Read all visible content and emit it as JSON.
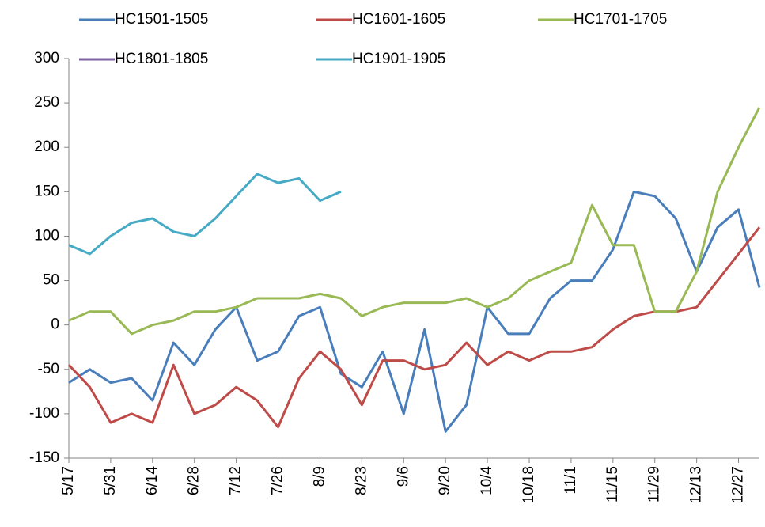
{
  "chart_data": {
    "type": "line",
    "categories": [
      "5/17",
      null,
      "5/31",
      null,
      "6/14",
      null,
      "6/28",
      null,
      "7/12",
      null,
      "7/26",
      null,
      "8/9",
      null,
      "8/23",
      null,
      "9/6",
      null,
      "9/20",
      null,
      "10/4",
      null,
      "10/18",
      null,
      "11/1",
      null,
      "11/15",
      null,
      "11/29",
      null,
      "12/13",
      null,
      "12/27",
      null
    ],
    "series": [
      {
        "name": "HC1501-1505",
        "color": "#4a7ebb",
        "values": [
          -65,
          -50,
          -65,
          -60,
          -85,
          -20,
          -45,
          -5,
          20,
          -40,
          -30,
          10,
          20,
          -55,
          -70,
          -30,
          -100,
          -5,
          -120,
          -90,
          20,
          -10,
          -10,
          30,
          50,
          50,
          85,
          150,
          145,
          120,
          60,
          110,
          130,
          42
        ]
      },
      {
        "name": "HC1601-1605",
        "color": "#be4b48",
        "values": [
          -45,
          -70,
          -110,
          -100,
          -110,
          -45,
          -100,
          -90,
          -70,
          -85,
          -115,
          -60,
          -30,
          -50,
          -90,
          -40,
          -40,
          -50,
          -45,
          -20,
          -45,
          -30,
          -40,
          -30,
          -30,
          -25,
          -5,
          10,
          15,
          15,
          20,
          50,
          80,
          110
        ]
      },
      {
        "name": "HC1701-1705",
        "color": "#98b954",
        "values": [
          5,
          15,
          15,
          -10,
          0,
          5,
          15,
          15,
          20,
          30,
          30,
          30,
          35,
          30,
          10,
          20,
          25,
          25,
          25,
          30,
          20,
          30,
          50,
          60,
          70,
          135,
          90,
          90,
          15,
          15,
          60,
          150,
          200,
          245
        ]
      },
      {
        "name": "HC1801-1805",
        "color": "#7d60a0",
        "values": [
          null,
          null,
          null,
          null,
          null,
          null,
          null,
          null,
          null,
          null,
          null,
          null,
          null,
          null,
          null,
          null,
          null,
          null,
          null,
          null,
          null,
          null,
          null,
          null,
          null,
          null,
          null,
          null,
          null,
          null,
          null,
          null,
          null,
          null
        ]
      },
      {
        "name": "HC1901-1905",
        "color": "#46aac5",
        "values": [
          90,
          80,
          100,
          115,
          120,
          105,
          100,
          120,
          145,
          170,
          160,
          165,
          140,
          150,
          null,
          null,
          null,
          null,
          null,
          null,
          null,
          null,
          null,
          null,
          null,
          null,
          null,
          null,
          null,
          null,
          null,
          null,
          null,
          null
        ]
      }
    ],
    "ylim": [
      -150,
      300
    ],
    "yticks": [
      -150,
      -100,
      -50,
      0,
      50,
      100,
      150,
      200,
      250,
      300
    ]
  }
}
